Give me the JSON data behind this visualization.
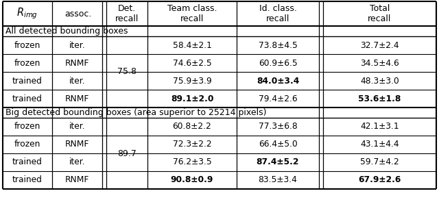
{
  "col_headers_line1": [
    "",
    "assoc.",
    "Det.",
    "Team class.",
    "Id. class.",
    "Total"
  ],
  "col_headers_line2": [
    "",
    "",
    "recall",
    "recall",
    "recall",
    "recall"
  ],
  "section1_label": "All detected bounding boxes",
  "section2_label": "Big detected bounding boxes (area superior to 25214 pixels)",
  "det_recall_1": "75.8",
  "det_recall_2": "89.7",
  "rows_section1": [
    [
      "frozen",
      "iter.",
      "58.4±2.1",
      "73.8±4.5",
      "32.7±2.4",
      false,
      false,
      false
    ],
    [
      "frozen",
      "RNMF",
      "74.6±2.5",
      "60.9±6.5",
      "34.5±4.6",
      false,
      false,
      false
    ],
    [
      "trained",
      "iter.",
      "75.9±3.9",
      "84.0±3.4",
      "48.3±3.0",
      false,
      true,
      false
    ],
    [
      "trained",
      "RNMF",
      "89.1±2.0",
      "79.4±2.6",
      "53.6±1.8",
      true,
      false,
      true
    ]
  ],
  "rows_section2": [
    [
      "frozen",
      "iter.",
      "60.8±2.2",
      "77.3±6.8",
      "42.1±3.1",
      false,
      false,
      false
    ],
    [
      "frozen",
      "RNMF",
      "72.3±2.2",
      "66.4±5.0",
      "43.1±4.4",
      false,
      false,
      false
    ],
    [
      "trained",
      "iter.",
      "76.2±3.5",
      "87.4±5.2",
      "59.7±4.2",
      false,
      true,
      false
    ],
    [
      "trained",
      "RNMF",
      "90.8±0.9",
      "83.5±3.4",
      "67.9±2.6",
      true,
      false,
      true
    ]
  ],
  "background_color": "#ffffff",
  "border_color": "#000000",
  "text_color": "#000000"
}
